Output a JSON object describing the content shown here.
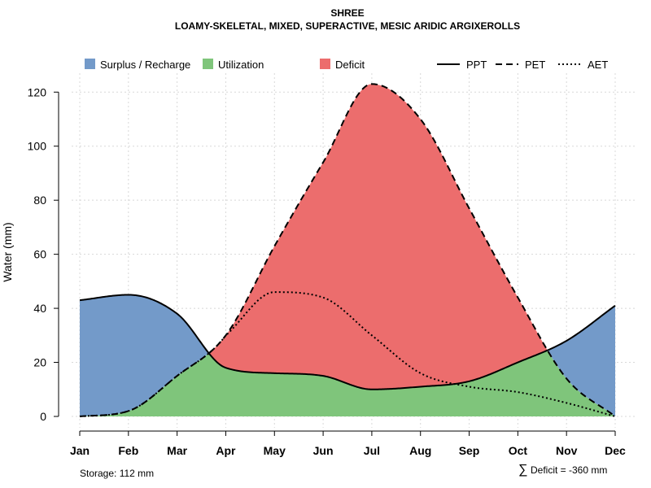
{
  "chart_data": {
    "type": "area",
    "title": "SHREE",
    "subtitle": "LOAMY-SKELETAL, MIXED, SUPERACTIVE, MESIC ARIDIC ARGIXEROLLS",
    "ylabel": "Water (mm)",
    "xlabel": "",
    "ylim": [
      0,
      127
    ],
    "yticks": [
      "0",
      "20",
      "40",
      "60",
      "80",
      "100",
      "120"
    ],
    "categories": [
      "Jan",
      "Feb",
      "Mar",
      "Apr",
      "May",
      "Jun",
      "Jul",
      "Aug",
      "Sep",
      "Oct",
      "Nov",
      "Dec"
    ],
    "series": [
      {
        "name": "PPT",
        "line": "solid",
        "values": [
          43,
          45,
          38,
          18,
          16,
          15,
          10,
          11,
          13,
          20,
          28,
          41
        ]
      },
      {
        "name": "PET",
        "line": "dashed",
        "values": [
          0,
          2,
          15,
          30,
          63,
          94,
          123,
          110,
          77,
          44,
          14,
          0
        ]
      },
      {
        "name": "AET",
        "line": "dotted",
        "values": [
          0,
          2,
          15,
          30,
          46,
          44,
          30,
          16,
          11,
          9,
          5,
          0
        ]
      }
    ],
    "areas": [
      {
        "name": "Surplus / Recharge",
        "color": "#739ac9"
      },
      {
        "name": "Utilization",
        "color": "#7fc57b"
      },
      {
        "name": "Deficit",
        "color": "#ec6d6d"
      }
    ],
    "legend_lines": [
      "PPT",
      "PET",
      "AET"
    ],
    "legend_position": "top",
    "grid": true
  },
  "footer": {
    "storage": "Storage: 112 mm",
    "deficit_symbol": "∑",
    "deficit": "Deficit = -360 mm"
  }
}
